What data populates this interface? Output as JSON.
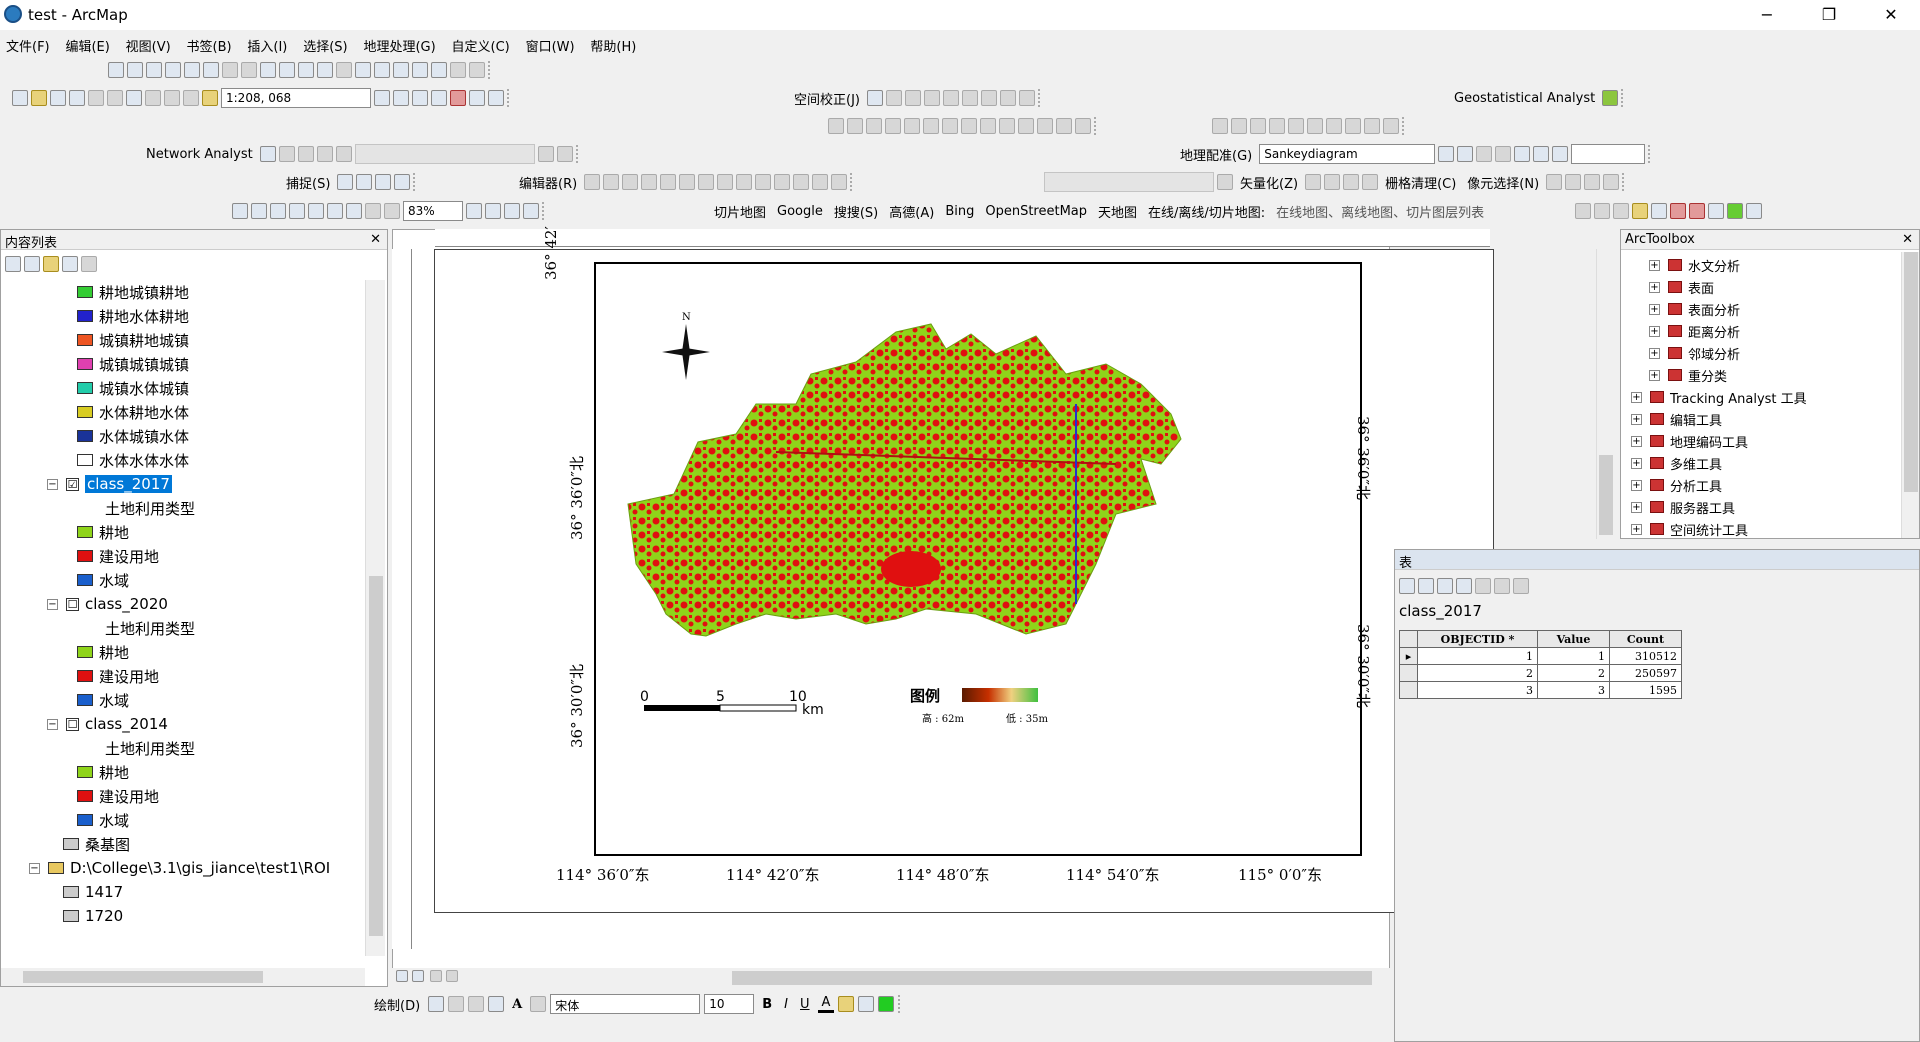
{
  "window": {
    "title": "test - ArcMap",
    "minimize": "−",
    "maximize": "❐",
    "close": "✕"
  },
  "menubar": [
    "文件(F)",
    "编辑(E)",
    "视图(V)",
    "书签(B)",
    "插入(I)",
    "选择(S)",
    "地理处理(G)",
    "自定义(C)",
    "窗口(W)",
    "帮助(H)"
  ],
  "toolbar": {
    "scale": "1:208, 068",
    "spatial_adjust": "空间校正(J)",
    "geostat": "Geostatistical Analyst",
    "network_analyst": "Network Analyst",
    "georef": "地理配准(G)",
    "georef_layer": "Sankeydiagram",
    "snapping": "捕捉(S)",
    "editor": "编辑器(R)",
    "vectorize": "矢量化(Z)",
    "raster_clean": "栅格清理(C)",
    "pixel_select": "像元选择(N)",
    "zoom_pct": "83%",
    "tile_map": "切片地图",
    "google": "Google",
    "search": "搜搜(S)",
    "gaode": "高德(A)",
    "bing": "Bing",
    "osm": "OpenStreetMap",
    "tianditu": "天地图",
    "online_prefix": "在线/离线/切片地图:",
    "online_list": "在线地图、离线地图、切片图层列表"
  },
  "toc": {
    "title": "内容列表",
    "legend_items": [
      {
        "label": "耕地城镇耕地",
        "color": "#33cc33"
      },
      {
        "label": "耕地水体耕地",
        "color": "#2222cc"
      },
      {
        "label": "城镇耕地城镇",
        "color": "#ee5522"
      },
      {
        "label": "城镇城镇城镇",
        "color": "#e040b0"
      },
      {
        "label": "城镇水体城镇",
        "color": "#22ccaa"
      },
      {
        "label": "水体耕地水体",
        "color": "#d8cc22"
      },
      {
        "label": "水体城镇水体",
        "color": "#1a3399"
      },
      {
        "label": "水体水体水体",
        "color": "#ffffff"
      }
    ],
    "layers": [
      {
        "name": "class_2017",
        "checked": "☑",
        "field": "土地利用类型"
      },
      {
        "name": "class_2020",
        "checked": "☐",
        "field": "土地利用类型"
      },
      {
        "name": "class_2014",
        "checked": "☐",
        "field": "土地利用类型"
      }
    ],
    "classes": [
      {
        "label": "耕地",
        "color": "#8fd41a"
      },
      {
        "label": "建设用地",
        "color": "#e01010"
      },
      {
        "label": "水域",
        "color": "#1a5fcc"
      }
    ],
    "extra_layer": "桑基图",
    "folder": "D:\\College\\3.1\\gis_jiance\\test1\\ROI",
    "folder_items": [
      "1417",
      "1720"
    ]
  },
  "map": {
    "north": "N",
    "scalebar": {
      "ticks": [
        "0",
        "5",
        "10"
      ],
      "unit": "km"
    },
    "legend_title": "图例",
    "legend_high": "高 : 62m",
    "legend_low": "低 : 35m",
    "x_labels": [
      "114° 36′0″东",
      "114° 42′0″东",
      "114° 48′0″东",
      "114° 54′0″东",
      "115° 0′0″东"
    ],
    "y_labels_left": [
      "36° 42′",
      "36° 36′0″北",
      "36° 30′0″北"
    ],
    "y_labels_right": [
      "36° 36′0″北",
      "36° 30′0″北"
    ]
  },
  "toolbox": {
    "title": "ArcToolbox",
    "items": [
      {
        "label": "水文分析",
        "indent": 2
      },
      {
        "label": "表面",
        "indent": 2
      },
      {
        "label": "表面分析",
        "indent": 2
      },
      {
        "label": "距离分析",
        "indent": 2
      },
      {
        "label": "邻域分析",
        "indent": 2
      },
      {
        "label": "重分类",
        "indent": 2
      },
      {
        "label": "Tracking Analyst 工具",
        "indent": 1
      },
      {
        "label": "编辑工具",
        "indent": 1
      },
      {
        "label": "地理编码工具",
        "indent": 1
      },
      {
        "label": "多维工具",
        "indent": 1
      },
      {
        "label": "分析工具",
        "indent": 1
      },
      {
        "label": "服务器工具",
        "indent": 1
      },
      {
        "label": "空间统计工具",
        "indent": 1
      }
    ]
  },
  "table": {
    "title": "表",
    "layer": "class_2017",
    "headers": [
      "OBJECTID *",
      "Value",
      "Count"
    ],
    "rows": [
      [
        "1",
        "1",
        "310512"
      ],
      [
        "2",
        "2",
        "250597"
      ],
      [
        "3",
        "3",
        "1595"
      ]
    ]
  },
  "drawbar": {
    "draw": "绘制(D)",
    "font": "宋体",
    "size": "10",
    "bold": "B",
    "italic": "I",
    "underline": "U",
    "fontcolor": "A"
  }
}
